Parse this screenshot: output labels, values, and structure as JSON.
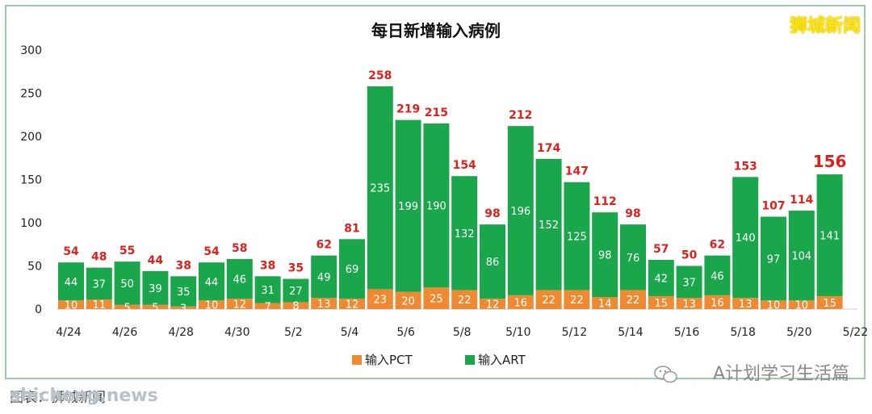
{
  "chart_data": {
    "type": "bar",
    "stacked": true,
    "title": "每日新增输入病例",
    "x_tick_labels": [
      "4/24",
      "4/26",
      "4/28",
      "4/30",
      "5/2",
      "5/4",
      "5/6",
      "5/8",
      "5/10",
      "5/12",
      "5/14",
      "5/16",
      "5/18",
      "5/20",
      "5/22"
    ],
    "categories": [
      "4/24",
      "4/25",
      "4/26",
      "4/27",
      "4/28",
      "4/29",
      "4/30",
      "5/1",
      "5/2",
      "5/3",
      "5/4",
      "5/5",
      "5/6",
      "5/7",
      "5/8",
      "5/9",
      "5/10",
      "5/11",
      "5/12",
      "5/13",
      "5/14",
      "5/15",
      "5/16",
      "5/17",
      "5/18",
      "5/19",
      "5/20",
      "5/21"
    ],
    "series": [
      {
        "name": "输入PCT",
        "color": "#f08a32",
        "values": [
          10,
          11,
          5,
          5,
          3,
          10,
          12,
          7,
          8,
          13,
          12,
          23,
          20,
          25,
          22,
          12,
          16,
          22,
          22,
          14,
          22,
          15,
          13,
          16,
          13,
          10,
          10,
          15
        ]
      },
      {
        "name": "输入ART",
        "color": "#1aa64a",
        "values": [
          44,
          37,
          50,
          39,
          35,
          44,
          46,
          31,
          27,
          49,
          69,
          235,
          199,
          190,
          132,
          86,
          196,
          152,
          125,
          98,
          76,
          42,
          37,
          46,
          140,
          97,
          104,
          141
        ]
      }
    ],
    "totals": [
      54,
      48,
      55,
      44,
      38,
      54,
      58,
      38,
      35,
      62,
      81,
      258,
      219,
      215,
      154,
      98,
      212,
      174,
      147,
      112,
      98,
      57,
      50,
      62,
      153,
      107,
      114,
      156
    ],
    "ylim": [
      0,
      300
    ],
    "yticks": [
      0,
      50,
      100,
      150,
      200,
      250,
      300
    ],
    "legend_position": "bottom",
    "grid": false
  },
  "watermarks": {
    "brand": "狮城新闻",
    "account": "A计划学习生活篇",
    "site": "shicheng.news",
    "caption": "图表：狮城新闻"
  }
}
